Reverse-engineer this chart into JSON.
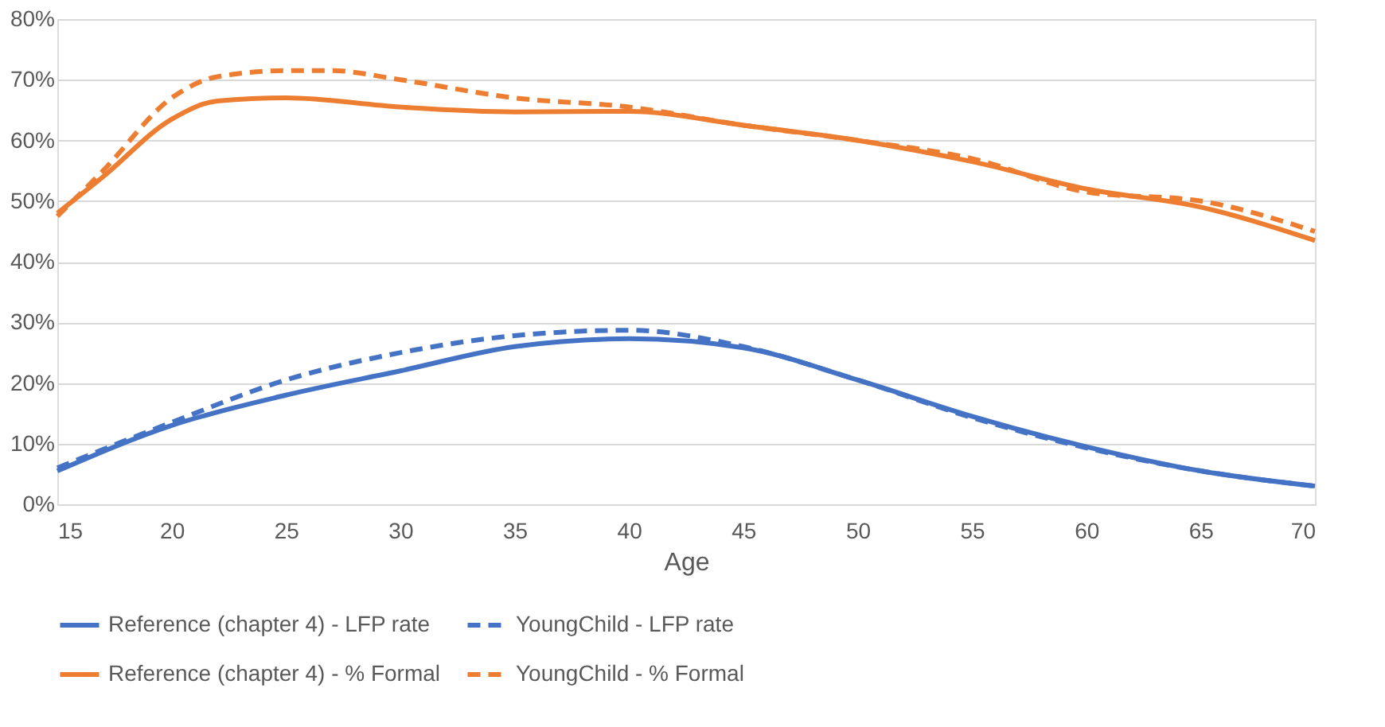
{
  "chart_data": {
    "type": "line",
    "xlabel": "Age",
    "xlim": [
      15,
      70
    ],
    "xticks": [
      15,
      20,
      25,
      30,
      35,
      40,
      45,
      50,
      55,
      60,
      65,
      70
    ],
    "ylim": [
      0,
      80
    ],
    "yticks": [
      {
        "value": 0,
        "label": "0%"
      },
      {
        "value": 10,
        "label": "10%"
      },
      {
        "value": 20,
        "label": "20%"
      },
      {
        "value": 30,
        "label": "30%"
      },
      {
        "value": 40,
        "label": "40%"
      },
      {
        "value": 50,
        "label": "50%"
      },
      {
        "value": 60,
        "label": "60%"
      },
      {
        "value": 70,
        "label": "70%"
      },
      {
        "value": 80,
        "label": "80%"
      }
    ],
    "grid": "y",
    "legend": "bottom",
    "marker": "none",
    "series": [
      {
        "name": "Reference (chapter 4) - LFP rate",
        "color": "#4472c4",
        "line_style": "solid",
        "x": [
          15,
          20,
          25,
          30,
          35,
          40,
          45,
          50,
          55,
          60,
          65,
          70
        ],
        "values": [
          5.5,
          13,
          18,
          22,
          26,
          27.3,
          25.8,
          20.5,
          14.5,
          9.5,
          5.5,
          3
        ]
      },
      {
        "name": "YoungChild - LFP rate",
        "color": "#4472c4",
        "line_style": "dashed",
        "x": [
          15,
          20,
          25,
          30,
          35,
          40,
          45,
          50,
          55,
          60,
          65,
          70
        ],
        "values": [
          6,
          13.5,
          20.5,
          25,
          27.8,
          28.7,
          26,
          20.5,
          14.3,
          9.3,
          5.5,
          3
        ]
      },
      {
        "name": "Reference (chapter 4) - % Formal",
        "color": "#ed7d31",
        "line_style": "solid",
        "x": [
          15,
          17,
          20,
          22,
          25,
          30,
          35,
          40,
          45,
          50,
          55,
          60,
          65,
          70
        ],
        "values": [
          48,
          54,
          63.5,
          66.5,
          67,
          65.5,
          64.7,
          64.8,
          62.5,
          60,
          56.5,
          52,
          49,
          43.5
        ]
      },
      {
        "name": "YoungChild - % Formal",
        "color": "#ed7d31",
        "line_style": "dashed",
        "x": [
          15,
          17,
          20,
          22,
          25,
          27,
          30,
          35,
          40,
          45,
          50,
          55,
          60,
          65,
          70
        ],
        "values": [
          47.5,
          55,
          67,
          70.5,
          71.5,
          71.5,
          70,
          67,
          65.5,
          62.5,
          60,
          57,
          51.5,
          50,
          45
        ]
      }
    ]
  }
}
